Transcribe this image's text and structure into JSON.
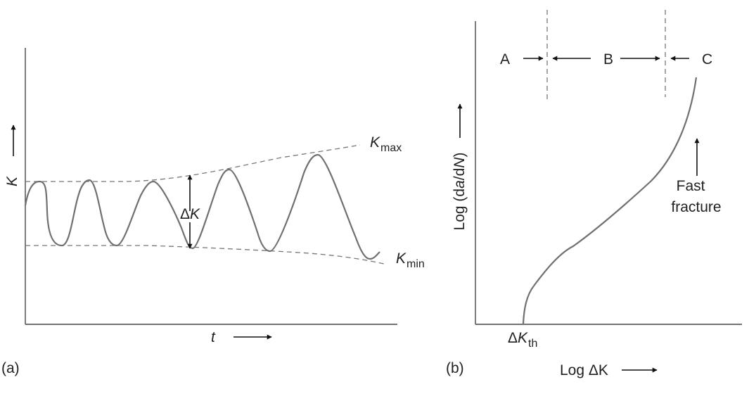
{
  "panel_a": {
    "label": "(a)",
    "y_axis_label": "K",
    "x_axis_label": "t",
    "k_max_label": {
      "main": "K",
      "sub": "max"
    },
    "k_min_label": {
      "main": "K",
      "sub": "min"
    },
    "delta_k_label": {
      "delta": "Δ",
      "main": "K"
    }
  },
  "panel_b": {
    "label": "(b)",
    "y_axis_label": {
      "prefix": "Log (d",
      "a": "a",
      "mid": "/d",
      "n": "N",
      "suffix": ")"
    },
    "x_axis_label": "Log ΔK",
    "regions": [
      "A",
      "B",
      "C"
    ],
    "threshold_label": {
      "delta": "Δ",
      "main": "K",
      "sub": "th"
    },
    "annotation": [
      "Fast",
      "fracture"
    ]
  }
}
